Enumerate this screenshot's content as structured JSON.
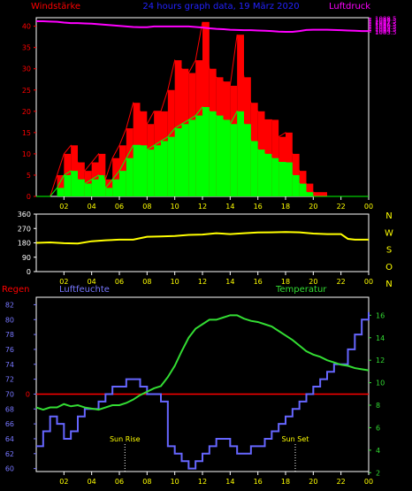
{
  "header": {
    "left_title": "Windstärke",
    "center_title": "24 hours graph data, 19 März 2020",
    "right_title": "Luftdruck"
  },
  "colors": {
    "background": "#000000",
    "frame": "#ffffff",
    "axis_wind": "#ff0000",
    "axis_pressure": "#ff00ff",
    "axis_time": "#ffff00",
    "wind_gust": "#ff0000",
    "wind_avg": "#00ff00",
    "pressure": "#ff00ff",
    "wind_dir": "#ffff00",
    "humidity": "#6666ff",
    "temperature": "#33dd33",
    "rain": "#ff0000"
  },
  "chart_data": [
    {
      "type": "line",
      "id": "wind_pressure",
      "title": "24 hours graph data, 19 März 2020",
      "ylabel_left": "Windstärke",
      "ylabel_right": "Luftdruck",
      "x_ticks": [
        "02",
        "04",
        "06",
        "08",
        "10",
        "12",
        "14",
        "16",
        "18",
        "20",
        "22",
        "00"
      ],
      "ylim_left": [
        0,
        42
      ],
      "yticks_left": [
        "0",
        "5",
        "10",
        "15",
        "20",
        "25",
        "30",
        "35",
        "40"
      ],
      "ylim_right": [
        1023.2,
        1088.7
      ],
      "yticks_right": [
        "1083.5",
        "1084",
        "1084.5",
        "1085",
        "1085.5",
        "1086",
        "1086.5",
        "1087",
        "1087.5",
        "1088",
        "1088.5"
      ],
      "series": [
        {
          "name": "Luftdruck",
          "axis": "right",
          "x": [
            0.0,
            0.5,
            1.0,
            1.5,
            2.0,
            2.5,
            3.0,
            3.5,
            4.0,
            4.5,
            5.0,
            5.5,
            6.0,
            6.5,
            7.0,
            7.5,
            8.0,
            8.5,
            9.0,
            9.5,
            10.0,
            10.5,
            11.0,
            11.5,
            12.0,
            12.5,
            13.0,
            13.5,
            14.0,
            14.5,
            15.0,
            15.5,
            16.0,
            16.5,
            17.0,
            17.5,
            18.0,
            18.5,
            19.0,
            19.5,
            20.0,
            20.5,
            21.0,
            21.5,
            22.0,
            22.5,
            23.0,
            23.5,
            24.0
          ],
          "y": [
            1087.4,
            1087.4,
            1087.3,
            1087.2,
            1086.9,
            1086.7,
            1086.7,
            1086.6,
            1086.5,
            1086.3,
            1086.1,
            1085.9,
            1085.7,
            1085.5,
            1085.3,
            1085.2,
            1085.2,
            1085.5,
            1085.5,
            1085.5,
            1085.5,
            1085.5,
            1085.5,
            1085.3,
            1085.1,
            1084.8,
            1084.6,
            1084.5,
            1084.3,
            1084.2,
            1084.1,
            1084.1,
            1084.0,
            1083.9,
            1083.8,
            1083.6,
            1083.5,
            1083.5,
            1083.8,
            1084.2,
            1084.3,
            1084.3,
            1084.3,
            1084.2,
            1084.1,
            1084.0,
            1083.9,
            1083.8,
            1083.8
          ]
        },
        {
          "name": "wind gust",
          "axis": "left",
          "x": [
            0.0,
            1.0,
            1.5,
            2.0,
            2.5,
            3.0,
            3.5,
            4.0,
            4.5,
            5.0,
            5.5,
            6.0,
            6.5,
            7.0,
            7.5,
            8.0,
            8.5,
            9.0,
            9.5,
            10.0,
            10.5,
            11.0,
            11.5,
            12.0,
            12.5,
            13.0,
            13.5,
            14.0,
            14.5,
            15.0,
            15.5,
            16.0,
            16.5,
            17.0,
            17.5,
            18.0,
            18.5,
            19.0,
            19.5,
            20.0,
            21.0,
            22.0,
            23.0,
            24.0
          ],
          "y": [
            0,
            0,
            5,
            10,
            12,
            8,
            6,
            8,
            10,
            4,
            9,
            12,
            16,
            22,
            20,
            17,
            20,
            20,
            25,
            32,
            30,
            29,
            32,
            41,
            30,
            28,
            27,
            26,
            38,
            28,
            22,
            20,
            18,
            18,
            14,
            15,
            10,
            6,
            3,
            1,
            0,
            0,
            0,
            0
          ]
        },
        {
          "name": "wind avg",
          "axis": "left",
          "x": [
            0.0,
            1.0,
            1.5,
            2.0,
            2.5,
            3.0,
            3.5,
            4.0,
            4.5,
            5.0,
            5.5,
            6.0,
            6.5,
            7.0,
            7.5,
            8.0,
            8.5,
            9.0,
            9.5,
            10.0,
            10.5,
            11.0,
            11.5,
            12.0,
            12.5,
            13.0,
            13.5,
            14.0,
            14.5,
            15.0,
            15.5,
            16.0,
            16.5,
            17.0,
            17.5,
            18.0,
            18.5,
            19.0,
            19.5,
            20.0,
            21.0,
            22.0,
            23.0,
            24.0
          ],
          "y": [
            0,
            0,
            2,
            5,
            6,
            4,
            3,
            4,
            5,
            2,
            4,
            6,
            9,
            12,
            12,
            11,
            12,
            13,
            14,
            16,
            17,
            18,
            19,
            21,
            20,
            19,
            18,
            17,
            20,
            17,
            13,
            11,
            10,
            9,
            8,
            8,
            5,
            3,
            1,
            0,
            0,
            0,
            0,
            0
          ]
        }
      ]
    },
    {
      "type": "line",
      "id": "wind_direction",
      "ylim": [
        0,
        360
      ],
      "yticks": [
        "0",
        "90",
        "180",
        "270",
        "360"
      ],
      "direction_labels": [
        "N",
        "W",
        "S",
        "O",
        "N"
      ],
      "x_ticks": [
        "02",
        "04",
        "06",
        "08",
        "10",
        "12",
        "14",
        "16",
        "18",
        "20",
        "22",
        "00"
      ],
      "series": [
        {
          "name": "wind direction",
          "x": [
            0.0,
            1.0,
            2.0,
            3.0,
            4.0,
            5.0,
            6.0,
            7.0,
            8.0,
            9.0,
            10.0,
            11.0,
            12.0,
            13.0,
            14.0,
            15.0,
            16.0,
            17.0,
            18.0,
            19.0,
            20.0,
            21.0,
            22.0,
            22.5,
            23.0,
            24.0
          ],
          "y": [
            180,
            183,
            178,
            176,
            190,
            196,
            200,
            200,
            218,
            220,
            223,
            230,
            232,
            240,
            235,
            240,
            245,
            246,
            248,
            246,
            238,
            235,
            235,
            205,
            200,
            200
          ]
        }
      ]
    },
    {
      "type": "line",
      "id": "humidity_temperature",
      "label_rain": "Regen",
      "label_humidity": "Luftfeuchte",
      "label_temperature": "Temperatur",
      "ylim_left": [
        59.6,
        83
      ],
      "yticks_left": [
        "60",
        "62",
        "64",
        "66",
        "68",
        "70",
        "72",
        "74",
        "76",
        "78",
        "80",
        "82"
      ],
      "ylim_right": [
        2.1,
        17.6
      ],
      "yticks_right": [
        "2",
        "4",
        "6",
        "8",
        "10",
        "12",
        "14",
        "16"
      ],
      "rain_value": "0",
      "x_ticks": [
        "02",
        "04",
        "06",
        "08",
        "10",
        "12",
        "14",
        "16",
        "18",
        "20",
        "22",
        "00"
      ],
      "annotations": [
        {
          "text": "Sun Rise",
          "x": 6.4
        },
        {
          "text": "Sun Set",
          "x": 18.7
        }
      ],
      "series": [
        {
          "name": "Luftfeuchte",
          "axis": "left",
          "x": [
            0.0,
            0.5,
            1.0,
            1.5,
            2.0,
            2.5,
            3.0,
            3.5,
            4.0,
            4.5,
            5.0,
            5.5,
            6.0,
            6.5,
            7.0,
            7.5,
            8.0,
            8.5,
            9.0,
            9.5,
            10.0,
            10.5,
            11.0,
            11.5,
            12.0,
            12.5,
            13.0,
            13.5,
            14.0,
            14.5,
            15.0,
            15.5,
            16.0,
            16.5,
            17.0,
            17.5,
            18.0,
            18.5,
            19.0,
            19.5,
            20.0,
            20.5,
            21.0,
            21.5,
            22.0,
            22.5,
            23.0,
            23.5,
            24.0
          ],
          "y": [
            63,
            65,
            67,
            66,
            64,
            65,
            67,
            68,
            68,
            69,
            70,
            71,
            71,
            72,
            72,
            71,
            70,
            70,
            69,
            63,
            62,
            61,
            60,
            61,
            62,
            63,
            64,
            64,
            63,
            62,
            62,
            63,
            63,
            64,
            65,
            66,
            67,
            68,
            69,
            70,
            71,
            72,
            73,
            74,
            74,
            76,
            78,
            80,
            81
          ]
        },
        {
          "name": "Temperatur",
          "axis": "right",
          "x": [
            0.0,
            0.5,
            1.0,
            1.5,
            2.0,
            2.5,
            3.0,
            3.5,
            4.0,
            4.5,
            5.0,
            5.5,
            6.0,
            6.5,
            7.0,
            7.5,
            8.0,
            8.5,
            9.0,
            9.5,
            10.0,
            10.5,
            11.0,
            11.5,
            12.0,
            12.5,
            13.0,
            13.5,
            14.0,
            14.5,
            15.0,
            15.5,
            16.0,
            16.5,
            17.0,
            17.5,
            18.0,
            18.5,
            19.0,
            19.5,
            20.0,
            20.5,
            21.0,
            21.5,
            22.0,
            22.5,
            23.0,
            23.5,
            24.0
          ],
          "y": [
            7.8,
            7.6,
            7.8,
            7.8,
            8.1,
            7.9,
            8.0,
            7.8,
            7.7,
            7.6,
            7.8,
            8.0,
            8.0,
            8.2,
            8.5,
            8.9,
            9.2,
            9.5,
            9.7,
            10.5,
            11.5,
            12.8,
            14.0,
            14.8,
            15.2,
            15.6,
            15.6,
            15.8,
            16.0,
            16.0,
            15.7,
            15.5,
            15.4,
            15.2,
            15.0,
            14.6,
            14.2,
            13.8,
            13.3,
            12.8,
            12.5,
            12.3,
            12.0,
            11.8,
            11.6,
            11.5,
            11.3,
            11.2,
            11.1
          ]
        }
      ]
    }
  ]
}
